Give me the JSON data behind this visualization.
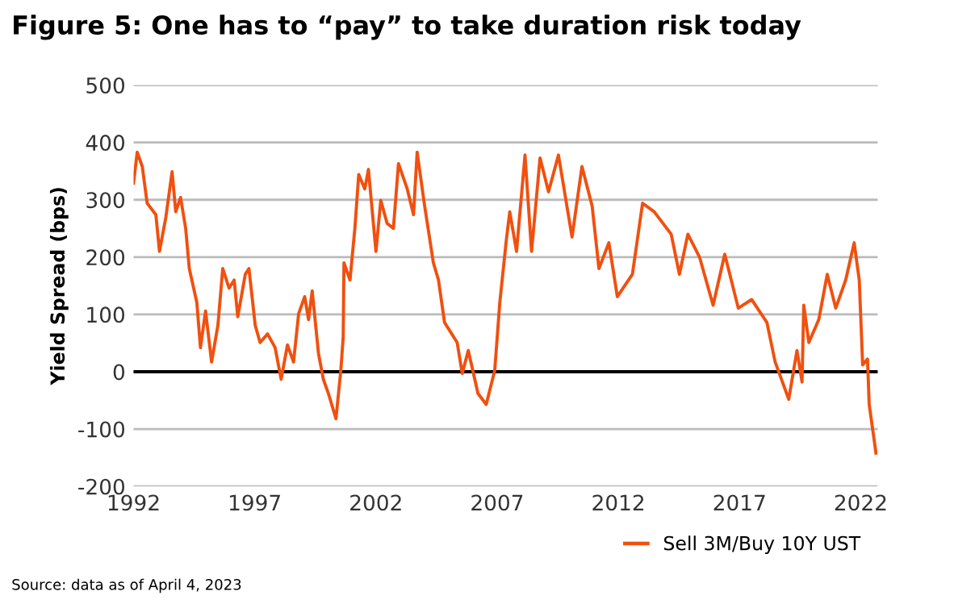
{
  "chart_data": {
    "type": "line",
    "title": "Figure 5: One has to “pay” to take duration risk today",
    "ylabel": "Yield Spread (bps)",
    "annotations": [
      "Source: data as of April 4, 2023"
    ],
    "xlim": [
      1992,
      2022.7
    ],
    "xticks": [
      1992,
      1997,
      2002,
      2007,
      2012,
      2017,
      2022
    ],
    "ylim": [
      -200,
      500
    ],
    "yticks": [
      -200,
      -100,
      0,
      100,
      200,
      300,
      400,
      500
    ],
    "grid": "y",
    "legend": "bottom right",
    "ref_lines": [
      {
        "axis": "y",
        "value": 0,
        "color": "#000000"
      }
    ],
    "series": [
      {
        "name": "Sell 3M/Buy 10Y UST",
        "color": "#f05010",
        "x": [
          1992.0,
          1992.15,
          1992.36,
          1992.56,
          1992.92,
          1993.07,
          1993.33,
          1993.59,
          1993.74,
          1993.94,
          1994.15,
          1994.3,
          1994.61,
          1994.76,
          1994.97,
          1995.22,
          1995.48,
          1995.68,
          1995.94,
          1996.15,
          1996.3,
          1996.61,
          1996.76,
          1997.02,
          1997.22,
          1997.53,
          1997.84,
          1998.09,
          1998.35,
          1998.6,
          1998.81,
          1999.06,
          1999.22,
          1999.37,
          1999.63,
          1999.83,
          2000.04,
          2000.35,
          2000.55,
          2000.65,
          2000.68,
          2000.93,
          2001.13,
          2001.29,
          2001.54,
          2001.69,
          2002.0,
          2002.2,
          2002.46,
          2002.72,
          2002.93,
          2003.29,
          2003.55,
          2003.7,
          2004.01,
          2004.37,
          2004.58,
          2004.83,
          2005.35,
          2005.56,
          2005.81,
          2006.21,
          2006.55,
          2006.9,
          2007.11,
          2007.38,
          2007.52,
          2007.8,
          2008.15,
          2008.42,
          2008.77,
          2009.12,
          2009.53,
          2010.09,
          2010.5,
          2010.92,
          2011.2,
          2011.61,
          2011.96,
          2012.58,
          2013.0,
          2013.48,
          2014.18,
          2014.52,
          2014.87,
          2015.35,
          2015.91,
          2016.39,
          2016.95,
          2017.5,
          2018.13,
          2018.47,
          2019.03,
          2019.37,
          2019.58,
          2019.65,
          2019.86,
          2020.27,
          2020.62,
          2020.97,
          2021.38,
          2021.73,
          2021.94,
          2022.08,
          2022.28,
          2022.35,
          2022.63
        ],
        "values": [
          329,
          383,
          358,
          294,
          274,
          210,
          269,
          349,
          279,
          304,
          250,
          180,
          121,
          42,
          106,
          17,
          81,
          180,
          146,
          160,
          96,
          170,
          180,
          81,
          51,
          66,
          42,
          -13,
          47,
          17,
          101,
          131,
          91,
          141,
          32,
          -13,
          -38,
          -82,
          2,
          61,
          190,
          160,
          250,
          344,
          319,
          353,
          210,
          299,
          259,
          250,
          363,
          319,
          274,
          383,
          289,
          190,
          160,
          86,
          51,
          -3,
          37,
          -38,
          -57,
          2,
          121,
          230,
          279,
          210,
          378,
          210,
          373,
          314,
          378,
          235,
          358,
          289,
          180,
          225,
          131,
          170,
          294,
          279,
          240,
          170,
          240,
          200,
          116,
          205,
          111,
          126,
          86,
          17,
          -48,
          37,
          -18,
          116,
          51,
          91,
          170,
          111,
          160,
          225,
          160,
          12,
          22,
          -57,
          -142
        ]
      }
    ]
  }
}
